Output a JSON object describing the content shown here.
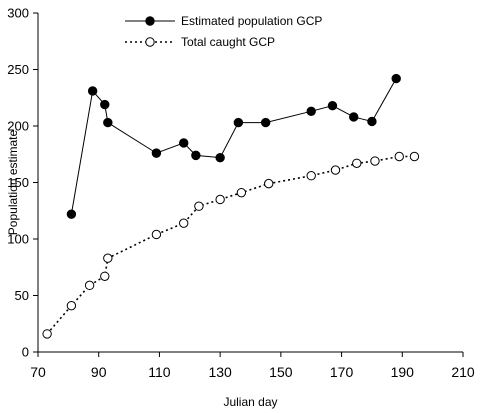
{
  "chart_data": {
    "type": "line",
    "xlabel": "Julian day",
    "ylabel": "Population estimate",
    "xlim": [
      70,
      210
    ],
    "ylim": [
      0,
      300
    ],
    "xticks": [
      70,
      90,
      110,
      130,
      150,
      170,
      190,
      210
    ],
    "yticks": [
      0,
      50,
      100,
      150,
      200,
      250,
      300
    ],
    "grid": false,
    "legend_position": "top-left",
    "series": [
      {
        "name": "Estimated population GCP",
        "marker": "filled-circle",
        "line": "solid",
        "color": "#000000",
        "x": [
          81,
          88,
          92,
          93,
          109,
          118,
          122,
          130,
          136,
          145,
          160,
          167,
          174,
          180,
          188
        ],
        "y": [
          122,
          231,
          219,
          203,
          176,
          185,
          174,
          172,
          203,
          203,
          213,
          218,
          208,
          204,
          242
        ]
      },
      {
        "name": "Total caught GCP",
        "marker": "open-circle",
        "line": "dotted",
        "color": "#000000",
        "x": [
          73,
          81,
          87,
          92,
          93,
          109,
          118,
          123,
          130,
          137,
          146,
          160,
          168,
          175,
          181,
          189,
          194
        ],
        "y": [
          16,
          41,
          59,
          67,
          83,
          104,
          114,
          129,
          135,
          141,
          149,
          156,
          161,
          167,
          169,
          173,
          173
        ]
      }
    ]
  }
}
